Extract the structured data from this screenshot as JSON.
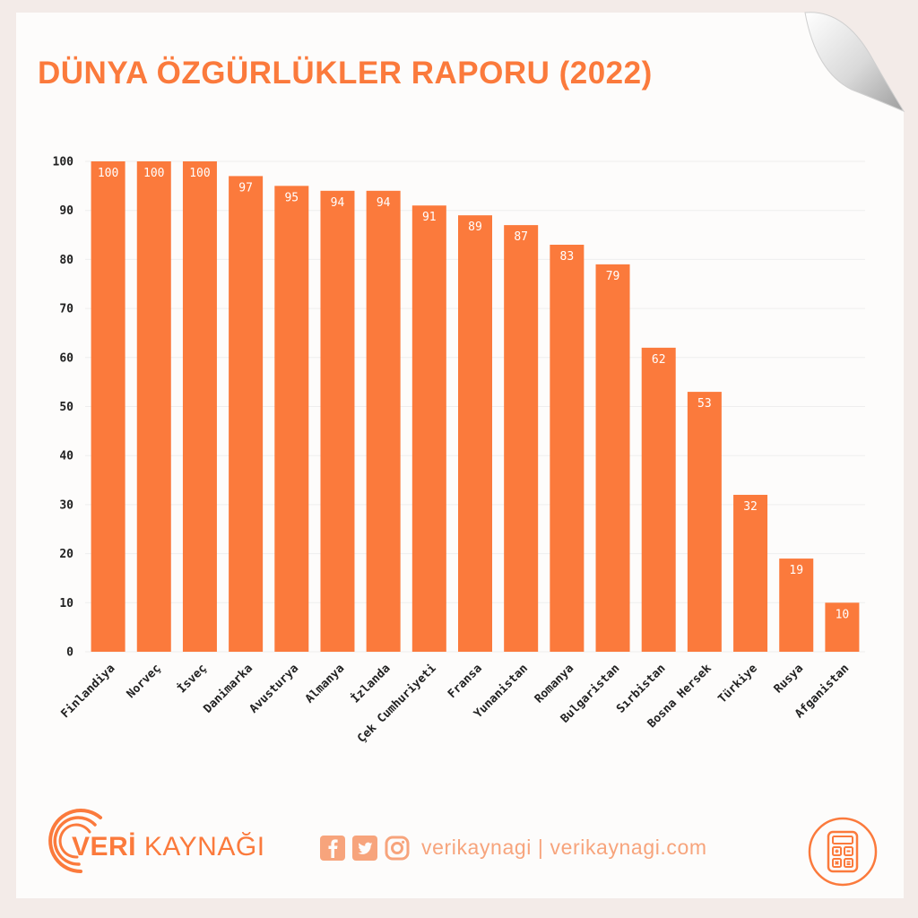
{
  "title": "DÜNYA ÖZGÜRLÜKLER RAPORU (2022)",
  "colors": {
    "accent": "#fb7a3c",
    "bar": "#fb7a3c",
    "grid": "#eeeeee",
    "muted": "#f7a47c"
  },
  "chart_data": {
    "type": "bar",
    "title": "DÜNYA ÖZGÜRLÜKLER RAPORU (2022)",
    "xlabel": "",
    "ylabel": "",
    "ylim": [
      0,
      100
    ],
    "yticks": [
      "0",
      "10",
      "20",
      "30",
      "40",
      "50",
      "60",
      "70",
      "80",
      "90",
      "100"
    ],
    "grid": true,
    "categories": [
      "Finlandiya",
      "Norveç",
      "İsveç",
      "Danimarka",
      "Avusturya",
      "Almanya",
      "İzlanda",
      "Çek Cumhuriyeti",
      "Fransa",
      "Yunanistan",
      "Romanya",
      "Bulgaristan",
      "Sırbistan",
      "Bosna Hersek",
      "Türkiye",
      "Rusya",
      "Afganistan"
    ],
    "values": [
      100,
      100,
      100,
      97,
      95,
      94,
      94,
      91,
      89,
      87,
      83,
      79,
      62,
      53,
      32,
      19,
      10
    ],
    "data_labels": [
      "100",
      "100",
      "100",
      "97",
      "95",
      "94",
      "94",
      "91",
      "89",
      "87",
      "83",
      "79",
      "62",
      "53",
      "32",
      "19",
      "10"
    ]
  },
  "footer": {
    "brand_bold": "VERİ",
    "brand_light": "KAYNAĞI",
    "handle": "verikaynagi | verikaynagi.com",
    "icons": [
      "facebook-icon",
      "twitter-icon",
      "instagram-icon",
      "calculator-icon"
    ]
  }
}
